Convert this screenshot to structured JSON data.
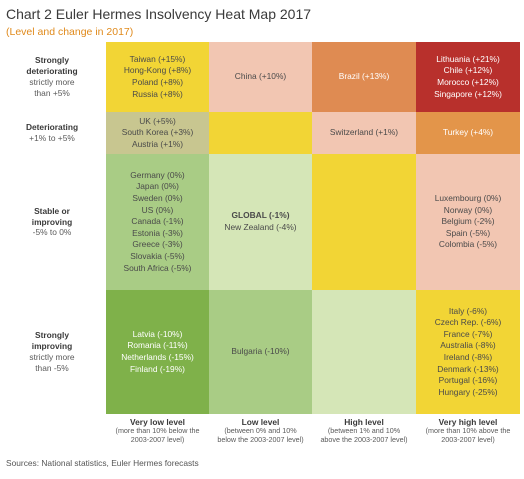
{
  "chart_data": {
    "type": "heatmap",
    "title": "Chart 2 Euler Hermes Insolvency Heat Map 2017",
    "subtitle": "(Level and change in 2017)",
    "rows": [
      {
        "title_lines": [
          "Strongly",
          "deteriorating"
        ],
        "range_lines": [
          "strictly more",
          "than +5%"
        ]
      },
      {
        "title_lines": [
          "Deteriorating"
        ],
        "range_lines": [
          "+1% to +5%"
        ]
      },
      {
        "title_lines": [
          "Stable or",
          "improving"
        ],
        "range_lines": [
          "-5% to 0%"
        ]
      },
      {
        "title_lines": [
          "Strongly",
          "improving"
        ],
        "range_lines": [
          "strictly more",
          "than -5%"
        ]
      }
    ],
    "columns": [
      {
        "title": "Very low level",
        "desc_lines": [
          "(more than 10% below the",
          "2003-2007 level)"
        ]
      },
      {
        "title": "Low level",
        "desc_lines": [
          "(between 0% and 10%",
          "below the 2003-2007 level)"
        ]
      },
      {
        "title": "High level",
        "desc_lines": [
          "(between 1% and 10%",
          "above the 2003-2007 level)"
        ]
      },
      {
        "title": "Very high level",
        "desc_lines": [
          "(more than 10% above the",
          "2003-2007 level)"
        ]
      }
    ],
    "cells": [
      [
        {
          "color": "#f2d535",
          "items": [
            {
              "text": "Taiwan (+15%)"
            },
            {
              "text": "Hong-Kong (+8%)"
            },
            {
              "text": "Poland (+8%)"
            },
            {
              "text": "Russia (+8%)"
            }
          ]
        },
        {
          "color": "#f2c6b2",
          "items": [
            {
              "text": "China (+10%)"
            }
          ]
        },
        {
          "color": "#df8b52",
          "items": [
            {
              "text": "Brazil (+13%)",
              "white": true
            }
          ]
        },
        {
          "color": "#b8302c",
          "items": [
            {
              "text": "Lithuania (+21%)",
              "white": true
            },
            {
              "text": "Chile (+12%)",
              "white": true
            },
            {
              "text": "Morocco (+12%)",
              "white": true
            },
            {
              "text": "Singapore (+12%)",
              "white": true
            }
          ]
        }
      ],
      [
        {
          "color": "#c8c690",
          "items": [
            {
              "text": "UK (+5%)"
            },
            {
              "text": "South Korea (+3%)"
            },
            {
              "text": "Austria (+1%)"
            }
          ]
        },
        {
          "color": "#f2d535",
          "items": []
        },
        {
          "color": "#f2c6b2",
          "items": [
            {
              "text": "Switzerland (+1%)"
            }
          ]
        },
        {
          "color": "#e3954a",
          "items": [
            {
              "text": "Turkey (+4%)",
              "white": true
            }
          ]
        }
      ],
      [
        {
          "color": "#a9cc85",
          "items": [
            {
              "text": "Germany (0%)"
            },
            {
              "text": "Japan (0%)"
            },
            {
              "text": "Sweden (0%)"
            },
            {
              "text": "US (0%)"
            },
            {
              "text": "Canada (-1%)"
            },
            {
              "text": "Estonia (-3%)"
            },
            {
              "text": "Greece (-3%)"
            },
            {
              "text": "Slovakia (-5%)"
            },
            {
              "text": "South Africa (-5%)"
            }
          ]
        },
        {
          "color": "#d5e6b7",
          "items": [
            {
              "text": "GLOBAL (-1%)",
              "bold": true
            },
            {
              "text": "New Zealand (-4%)"
            }
          ]
        },
        {
          "color": "#f2d535",
          "items": []
        },
        {
          "color": "#f2c6b2",
          "items": [
            {
              "text": "Luxembourg (0%)"
            },
            {
              "text": "Norway (0%)"
            },
            {
              "text": "Belgium (-2%)"
            },
            {
              "text": "Spain (-5%)"
            },
            {
              "text": "Colombia (-5%)"
            }
          ]
        }
      ],
      [
        {
          "color": "#7fb14a",
          "items": [
            {
              "text": "Latvia (-10%)",
              "white": true
            },
            {
              "text": "Romania (-11%)",
              "white": true
            },
            {
              "text": "Netherlands (-15%)",
              "white": true
            },
            {
              "text": "Finland (-19%)",
              "white": true
            }
          ]
        },
        {
          "color": "#a9cc85",
          "items": [
            {
              "text": "Bulgaria (-10%)"
            }
          ]
        },
        {
          "color": "#d5e6b7",
          "items": []
        },
        {
          "color": "#f2d535",
          "items": [
            {
              "text": "Italy (-6%)"
            },
            {
              "text": "Czech Rep. (-6%)"
            },
            {
              "text": "France (-7%)"
            },
            {
              "text": "Australia (-8%)"
            },
            {
              "text": "Ireland (-8%)"
            },
            {
              "text": "Denmark (-13%)"
            },
            {
              "text": "Portugal (-16%)"
            },
            {
              "text": "Hungary (-25%)"
            }
          ]
        }
      ]
    ]
  },
  "sources": "Sources: National statistics, Euler Hermes forecasts"
}
